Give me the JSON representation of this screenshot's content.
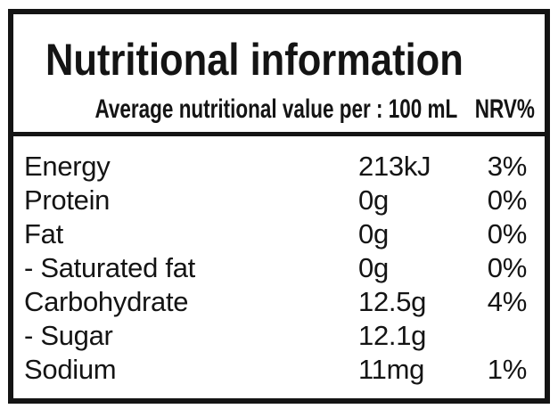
{
  "label": {
    "title": "Nutritional information",
    "subtitle": "Average nutritional value per : 100 mL",
    "nrv_header": "NRV%",
    "rows": [
      {
        "name": "Energy",
        "value": "213kJ",
        "nrv": "3%"
      },
      {
        "name": "Protein",
        "value": "0g",
        "nrv": "0%"
      },
      {
        "name": "Fat",
        "value": "0g",
        "nrv": "0%"
      },
      {
        "name": "- Saturated fat",
        "value": "0g",
        "nrv": "0%"
      },
      {
        "name": "Carbohydrate",
        "value": "12.5g",
        "nrv": "4%"
      },
      {
        "name": "- Sugar",
        "value": "12.1g",
        "nrv": ""
      },
      {
        "name": "Sodium",
        "value": "11mg",
        "nrv": "1%"
      }
    ]
  },
  "colors": {
    "background": "#ffffff",
    "text": "#141414",
    "border": "#141414"
  }
}
